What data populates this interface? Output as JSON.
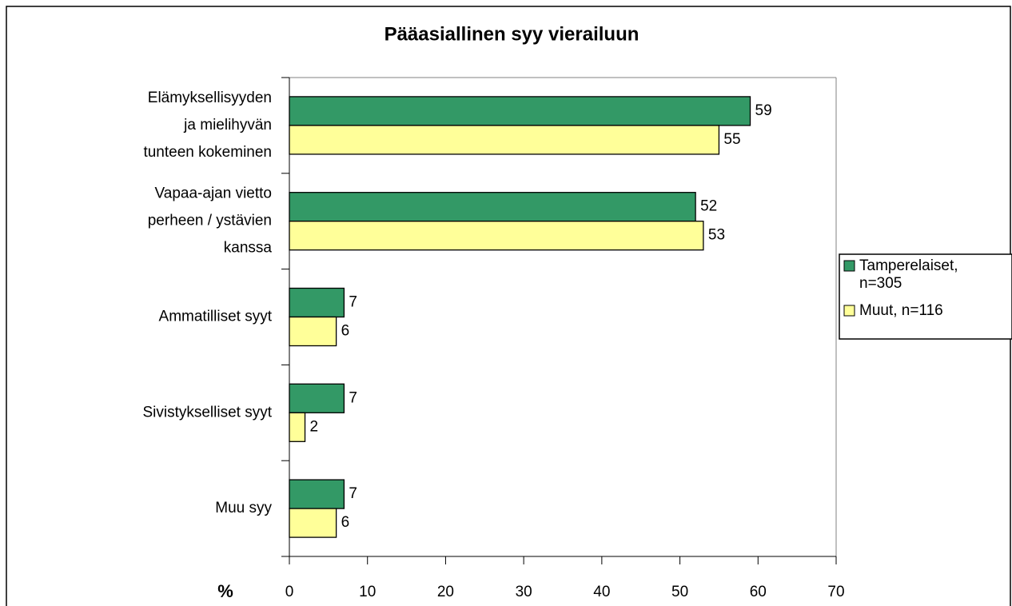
{
  "chart_data": {
    "type": "hbar",
    "title": "Pääasiallinen syy vierailuun",
    "x_label": "%",
    "categories": [
      "Elämyksellisyyden\nja mielihyvän\ntunteen kokeminen",
      "Vapaa-ajan vietto\nperheen / ystävien\nkanssa",
      "Ammatilliset syyt",
      "Sivistykselliset syyt",
      "Muu syy"
    ],
    "series": [
      {
        "name": "Tamperelaiset, n=305",
        "color": "#339966",
        "values": [
          59,
          52,
          7,
          7,
          7
        ]
      },
      {
        "name": "Muut, n=116",
        "color": "#ffff99",
        "values": [
          55,
          53,
          6,
          2,
          6
        ]
      }
    ],
    "xlim": [
      0,
      70
    ],
    "xticks": [
      0,
      10,
      20,
      30,
      40,
      50,
      60,
      70
    ],
    "legend": "right"
  }
}
